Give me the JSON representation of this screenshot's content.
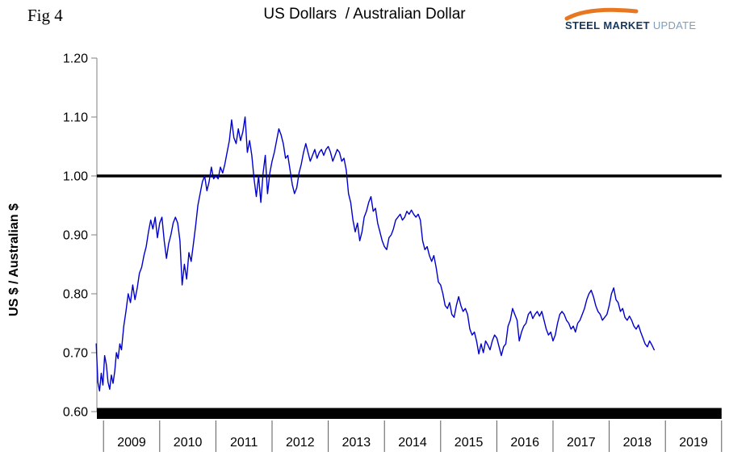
{
  "page": {
    "fig_label": "Fig 4"
  },
  "logo": {
    "steel": "STEEL",
    "market": "MARKET",
    "update": "UPDATE",
    "swoosh_color": "#E87722",
    "dark_text_color": "#17375E",
    "light_text_color": "#7F9DB9"
  },
  "chart_data": {
    "type": "line",
    "title": "US Dollars  / Australian Dollar",
    "xlabel": "",
    "ylabel": "US $ / Australian $",
    "ylim": [
      0.6,
      1.2
    ],
    "grid": false,
    "legend": "none",
    "reference_line": 1.0,
    "yticks": [
      {
        "value": 1.2,
        "label": "1.20"
      },
      {
        "value": 1.1,
        "label": "1.10"
      },
      {
        "value": 1.0,
        "label": "1.00"
      },
      {
        "value": 0.9,
        "label": "0.90"
      },
      {
        "value": 0.8,
        "label": "0.80"
      },
      {
        "value": 0.7,
        "label": "0.70"
      },
      {
        "value": 0.6,
        "label": "0.60"
      }
    ],
    "xticks": [
      {
        "value": 2009,
        "label": "2009"
      },
      {
        "value": 2010,
        "label": "2010"
      },
      {
        "value": 2011,
        "label": "2011"
      },
      {
        "value": 2012,
        "label": "2012"
      },
      {
        "value": 2013,
        "label": "2013"
      },
      {
        "value": 2014,
        "label": "2014"
      },
      {
        "value": 2015,
        "label": "2015"
      },
      {
        "value": 2016,
        "label": "2016"
      },
      {
        "value": 2017,
        "label": "2017"
      },
      {
        "value": 2018,
        "label": "2018"
      },
      {
        "value": 2019,
        "label": "2019"
      }
    ],
    "series": [
      {
        "name": "US $ per Australian $",
        "color": "#0000CC",
        "points": [
          [
            2008.87,
            0.715
          ],
          [
            2008.9,
            0.65
          ],
          [
            2008.93,
            0.635
          ],
          [
            2008.96,
            0.665
          ],
          [
            2008.99,
            0.645
          ],
          [
            2009.02,
            0.695
          ],
          [
            2009.05,
            0.68
          ],
          [
            2009.08,
            0.65
          ],
          [
            2009.11,
            0.638
          ],
          [
            2009.14,
            0.662
          ],
          [
            2009.17,
            0.648
          ],
          [
            2009.2,
            0.668
          ],
          [
            2009.23,
            0.7
          ],
          [
            2009.26,
            0.69
          ],
          [
            2009.29,
            0.715
          ],
          [
            2009.32,
            0.705
          ],
          [
            2009.36,
            0.745
          ],
          [
            2009.4,
            0.77
          ],
          [
            2009.44,
            0.8
          ],
          [
            2009.48,
            0.785
          ],
          [
            2009.52,
            0.815
          ],
          [
            2009.56,
            0.79
          ],
          [
            2009.6,
            0.81
          ],
          [
            2009.64,
            0.835
          ],
          [
            2009.68,
            0.845
          ],
          [
            2009.72,
            0.865
          ],
          [
            2009.76,
            0.88
          ],
          [
            2009.8,
            0.905
          ],
          [
            2009.84,
            0.925
          ],
          [
            2009.88,
            0.91
          ],
          [
            2009.92,
            0.93
          ],
          [
            2009.96,
            0.895
          ],
          [
            2010.0,
            0.92
          ],
          [
            2010.04,
            0.93
          ],
          [
            2010.08,
            0.89
          ],
          [
            2010.12,
            0.86
          ],
          [
            2010.16,
            0.885
          ],
          [
            2010.2,
            0.9
          ],
          [
            2010.24,
            0.92
          ],
          [
            2010.28,
            0.93
          ],
          [
            2010.32,
            0.92
          ],
          [
            2010.36,
            0.89
          ],
          [
            2010.4,
            0.815
          ],
          [
            2010.44,
            0.85
          ],
          [
            2010.48,
            0.825
          ],
          [
            2010.52,
            0.87
          ],
          [
            2010.56,
            0.855
          ],
          [
            2010.6,
            0.885
          ],
          [
            2010.64,
            0.915
          ],
          [
            2010.68,
            0.95
          ],
          [
            2010.72,
            0.97
          ],
          [
            2010.76,
            0.99
          ],
          [
            2010.8,
            1.0
          ],
          [
            2010.84,
            0.975
          ],
          [
            2010.88,
            0.99
          ],
          [
            2010.92,
            1.015
          ],
          [
            2010.96,
            0.995
          ],
          [
            2011.0,
            1.0
          ],
          [
            2011.04,
            0.995
          ],
          [
            2011.08,
            1.015
          ],
          [
            2011.12,
            1.005
          ],
          [
            2011.16,
            1.02
          ],
          [
            2011.2,
            1.04
          ],
          [
            2011.24,
            1.06
          ],
          [
            2011.28,
            1.095
          ],
          [
            2011.32,
            1.065
          ],
          [
            2011.36,
            1.055
          ],
          [
            2011.4,
            1.08
          ],
          [
            2011.44,
            1.06
          ],
          [
            2011.48,
            1.075
          ],
          [
            2011.52,
            1.1
          ],
          [
            2011.56,
            1.04
          ],
          [
            2011.6,
            1.06
          ],
          [
            2011.64,
            1.035
          ],
          [
            2011.68,
            0.995
          ],
          [
            2011.72,
            0.965
          ],
          [
            2011.76,
            1.0
          ],
          [
            2011.8,
            0.955
          ],
          [
            2011.84,
            1.005
          ],
          [
            2011.88,
            1.035
          ],
          [
            2011.92,
            0.97
          ],
          [
            2011.96,
            1.005
          ],
          [
            2012.0,
            1.025
          ],
          [
            2012.04,
            1.04
          ],
          [
            2012.08,
            1.06
          ],
          [
            2012.12,
            1.08
          ],
          [
            2012.16,
            1.07
          ],
          [
            2012.2,
            1.055
          ],
          [
            2012.24,
            1.03
          ],
          [
            2012.28,
            1.035
          ],
          [
            2012.32,
            1.01
          ],
          [
            2012.36,
            0.985
          ],
          [
            2012.4,
            0.97
          ],
          [
            2012.44,
            0.98
          ],
          [
            2012.48,
            1.005
          ],
          [
            2012.52,
            1.02
          ],
          [
            2012.56,
            1.04
          ],
          [
            2012.6,
            1.055
          ],
          [
            2012.64,
            1.04
          ],
          [
            2012.68,
            1.025
          ],
          [
            2012.72,
            1.035
          ],
          [
            2012.76,
            1.045
          ],
          [
            2012.8,
            1.03
          ],
          [
            2012.84,
            1.04
          ],
          [
            2012.88,
            1.045
          ],
          [
            2012.92,
            1.035
          ],
          [
            2012.96,
            1.045
          ],
          [
            2013.0,
            1.05
          ],
          [
            2013.04,
            1.04
          ],
          [
            2013.08,
            1.025
          ],
          [
            2013.12,
            1.035
          ],
          [
            2013.16,
            1.045
          ],
          [
            2013.2,
            1.04
          ],
          [
            2013.24,
            1.025
          ],
          [
            2013.28,
            1.03
          ],
          [
            2013.32,
            1.01
          ],
          [
            2013.36,
            0.97
          ],
          [
            2013.4,
            0.955
          ],
          [
            2013.44,
            0.925
          ],
          [
            2013.48,
            0.905
          ],
          [
            2013.52,
            0.92
          ],
          [
            2013.56,
            0.89
          ],
          [
            2013.6,
            0.905
          ],
          [
            2013.64,
            0.93
          ],
          [
            2013.68,
            0.94
          ],
          [
            2013.72,
            0.955
          ],
          [
            2013.76,
            0.965
          ],
          [
            2013.8,
            0.94
          ],
          [
            2013.84,
            0.945
          ],
          [
            2013.88,
            0.92
          ],
          [
            2013.92,
            0.905
          ],
          [
            2013.96,
            0.89
          ],
          [
            2014.0,
            0.88
          ],
          [
            2014.04,
            0.875
          ],
          [
            2014.08,
            0.895
          ],
          [
            2014.12,
            0.9
          ],
          [
            2014.16,
            0.91
          ],
          [
            2014.2,
            0.925
          ],
          [
            2014.24,
            0.93
          ],
          [
            2014.28,
            0.935
          ],
          [
            2014.32,
            0.925
          ],
          [
            2014.36,
            0.93
          ],
          [
            2014.4,
            0.94
          ],
          [
            2014.44,
            0.935
          ],
          [
            2014.48,
            0.942
          ],
          [
            2014.52,
            0.935
          ],
          [
            2014.56,
            0.93
          ],
          [
            2014.6,
            0.935
          ],
          [
            2014.64,
            0.925
          ],
          [
            2014.68,
            0.89
          ],
          [
            2014.72,
            0.875
          ],
          [
            2014.76,
            0.88
          ],
          [
            2014.8,
            0.865
          ],
          [
            2014.84,
            0.855
          ],
          [
            2014.88,
            0.865
          ],
          [
            2014.92,
            0.845
          ],
          [
            2014.96,
            0.82
          ],
          [
            2015.0,
            0.815
          ],
          [
            2015.04,
            0.8
          ],
          [
            2015.08,
            0.78
          ],
          [
            2015.12,
            0.775
          ],
          [
            2015.16,
            0.785
          ],
          [
            2015.2,
            0.765
          ],
          [
            2015.24,
            0.76
          ],
          [
            2015.28,
            0.78
          ],
          [
            2015.32,
            0.795
          ],
          [
            2015.36,
            0.78
          ],
          [
            2015.4,
            0.77
          ],
          [
            2015.44,
            0.775
          ],
          [
            2015.48,
            0.765
          ],
          [
            2015.52,
            0.74
          ],
          [
            2015.56,
            0.73
          ],
          [
            2015.6,
            0.735
          ],
          [
            2015.64,
            0.72
          ],
          [
            2015.68,
            0.698
          ],
          [
            2015.72,
            0.715
          ],
          [
            2015.76,
            0.7
          ],
          [
            2015.8,
            0.72
          ],
          [
            2015.84,
            0.713
          ],
          [
            2015.88,
            0.705
          ],
          [
            2015.92,
            0.72
          ],
          [
            2015.96,
            0.73
          ],
          [
            2016.0,
            0.725
          ],
          [
            2016.04,
            0.71
          ],
          [
            2016.08,
            0.695
          ],
          [
            2016.12,
            0.71
          ],
          [
            2016.16,
            0.715
          ],
          [
            2016.2,
            0.745
          ],
          [
            2016.24,
            0.755
          ],
          [
            2016.28,
            0.775
          ],
          [
            2016.32,
            0.765
          ],
          [
            2016.36,
            0.755
          ],
          [
            2016.4,
            0.72
          ],
          [
            2016.44,
            0.735
          ],
          [
            2016.48,
            0.745
          ],
          [
            2016.52,
            0.75
          ],
          [
            2016.56,
            0.765
          ],
          [
            2016.6,
            0.77
          ],
          [
            2016.64,
            0.758
          ],
          [
            2016.68,
            0.765
          ],
          [
            2016.72,
            0.77
          ],
          [
            2016.76,
            0.762
          ],
          [
            2016.8,
            0.77
          ],
          [
            2016.84,
            0.755
          ],
          [
            2016.88,
            0.74
          ],
          [
            2016.92,
            0.73
          ],
          [
            2016.96,
            0.735
          ],
          [
            2017.0,
            0.72
          ],
          [
            2017.04,
            0.73
          ],
          [
            2017.08,
            0.75
          ],
          [
            2017.12,
            0.765
          ],
          [
            2017.16,
            0.77
          ],
          [
            2017.2,
            0.765
          ],
          [
            2017.24,
            0.755
          ],
          [
            2017.28,
            0.75
          ],
          [
            2017.32,
            0.74
          ],
          [
            2017.36,
            0.745
          ],
          [
            2017.4,
            0.735
          ],
          [
            2017.44,
            0.75
          ],
          [
            2017.48,
            0.755
          ],
          [
            2017.52,
            0.765
          ],
          [
            2017.56,
            0.775
          ],
          [
            2017.6,
            0.79
          ],
          [
            2017.64,
            0.8
          ],
          [
            2017.68,
            0.806
          ],
          [
            2017.72,
            0.795
          ],
          [
            2017.76,
            0.78
          ],
          [
            2017.8,
            0.77
          ],
          [
            2017.84,
            0.765
          ],
          [
            2017.88,
            0.755
          ],
          [
            2017.92,
            0.76
          ],
          [
            2017.96,
            0.765
          ],
          [
            2018.0,
            0.78
          ],
          [
            2018.04,
            0.8
          ],
          [
            2018.08,
            0.81
          ],
          [
            2018.12,
            0.79
          ],
          [
            2018.16,
            0.785
          ],
          [
            2018.2,
            0.77
          ],
          [
            2018.24,
            0.775
          ],
          [
            2018.28,
            0.76
          ],
          [
            2018.32,
            0.755
          ],
          [
            2018.36,
            0.762
          ],
          [
            2018.4,
            0.755
          ],
          [
            2018.44,
            0.745
          ],
          [
            2018.48,
            0.74
          ],
          [
            2018.52,
            0.747
          ],
          [
            2018.56,
            0.735
          ],
          [
            2018.6,
            0.725
          ],
          [
            2018.64,
            0.715
          ],
          [
            2018.68,
            0.71
          ],
          [
            2018.72,
            0.72
          ],
          [
            2018.76,
            0.713
          ],
          [
            2018.8,
            0.705
          ]
        ]
      }
    ]
  }
}
